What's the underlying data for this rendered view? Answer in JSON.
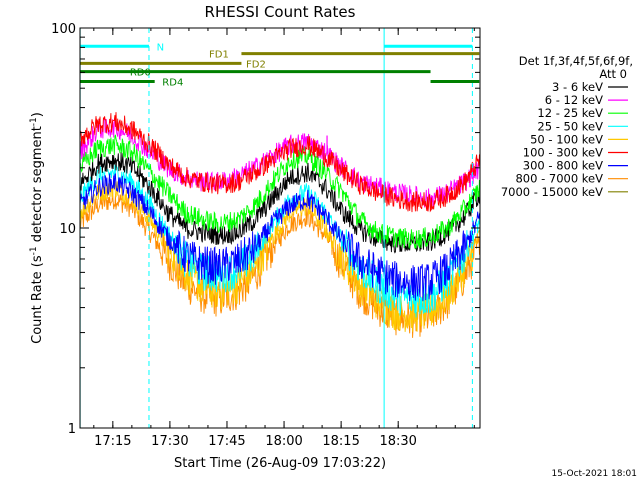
{
  "chart_data": {
    "type": "line",
    "title": "RHESSI Count Rates",
    "xlabel": "Start Time (26-Aug-09 17:03:22)",
    "ylabel_main": "Count Rate (s",
    "ylabel_sup": "-1",
    "ylabel_tail": " detector segment",
    "ylabel_end": ")",
    "yscale": "log",
    "ylim": [
      1,
      100
    ],
    "xlim_min": [
      3.37,
      108.5
    ],
    "x_ticks": [
      {
        "min": 12,
        "label": "17:15"
      },
      {
        "min": 27,
        "label": "17:30"
      },
      {
        "min": 42,
        "label": "17:45"
      },
      {
        "min": 57,
        "label": "18:00"
      },
      {
        "min": 72,
        "label": "18:15"
      },
      {
        "min": 87,
        "label": "18:30"
      }
    ],
    "y_ticks": [
      {
        "v": 1,
        "label": "1"
      },
      {
        "v": 10,
        "label": "10"
      },
      {
        "v": 100,
        "label": "100"
      }
    ],
    "legend_header": [
      "Det 1f,3f,4f,5f,6f,9f,",
      "Att 0"
    ],
    "series": [
      {
        "name": "3 - 6 keV",
        "color": "#000000",
        "values": [
          16.5,
          21,
          22,
          20,
          16,
          12,
          10,
          9.5,
          9.2,
          9.5,
          11,
          14,
          18,
          19,
          16,
          12,
          9.8,
          8.8,
          8.4,
          8.3,
          8.5,
          9.5,
          11.5,
          15
        ]
      },
      {
        "name": "6 - 12 keV",
        "color": "#ff00ff",
        "values": [
          24,
          31,
          32,
          29,
          24,
          20,
          18,
          17,
          17,
          18,
          20,
          23,
          26,
          27,
          24,
          20,
          17,
          16,
          15,
          14.5,
          14,
          15,
          17,
          20
        ]
      },
      {
        "name": "12 - 25 keV",
        "color": "#00ff00",
        "values": [
          20,
          25,
          26,
          24,
          19,
          15,
          12,
          11,
          10.5,
          11,
          13,
          17,
          22,
          23,
          19,
          15,
          11,
          9.5,
          9,
          8.8,
          9,
          10,
          12.5,
          16
        ]
      },
      {
        "name": "25 - 50 keV",
        "color": "#00ffff",
        "values": [
          14,
          18,
          19,
          17,
          13,
          9.5,
          7,
          6,
          5.8,
          6.2,
          7.5,
          10.5,
          14,
          15,
          12,
          8.5,
          6.3,
          5.2,
          4.6,
          4.4,
          4.5,
          5.5,
          7.5,
          11
        ]
      },
      {
        "name": "50 - 100 keV",
        "color": "#ffc800",
        "values": [
          12,
          15,
          16,
          14,
          11,
          8,
          6,
          5,
          4.8,
          5.2,
          6.3,
          9,
          12,
          13,
          10,
          7,
          5.2,
          4.3,
          3.8,
          3.7,
          3.8,
          4.6,
          6.3,
          9.3
        ]
      },
      {
        "name": "100 - 300 keV",
        "color": "#ff0000",
        "values": [
          28,
          33,
          34,
          31,
          26,
          21,
          18,
          17,
          16.5,
          17,
          19,
          22,
          25,
          26,
          23,
          19,
          16.5,
          15,
          14,
          13.5,
          13.5,
          14.5,
          17,
          22
        ]
      },
      {
        "name": "300 - 800 keV",
        "color": "#0000ff",
        "values": [
          13,
          16,
          17,
          15,
          12,
          9,
          7.3,
          6.6,
          6.4,
          6.8,
          8,
          10.5,
          13,
          14,
          11.5,
          8.6,
          6.8,
          6,
          5.5,
          5.3,
          5.4,
          6.2,
          8,
          11.5
        ]
      },
      {
        "name": "800 - 7000 keV",
        "color": "#ff8c00",
        "values": [
          10.5,
          13,
          14,
          12.5,
          9.5,
          7,
          5.3,
          4.6,
          4.4,
          4.8,
          5.8,
          8,
          10.5,
          11.5,
          9.2,
          6.5,
          4.8,
          4,
          3.6,
          3.5,
          3.6,
          4.3,
          5.8,
          8.5
        ]
      },
      {
        "name": "7000 - 15000 keV",
        "color": "#808000",
        "values": []
      }
    ],
    "sample_x_min": [
      3.37,
      8,
      12.6,
      17.2,
      21.8,
      26.4,
      31,
      35.6,
      40.2,
      44.8,
      49.4,
      54,
      58.6,
      63.2,
      67.8,
      72.4,
      77,
      81.6,
      86.2,
      90.8,
      95.4,
      100,
      104.6,
      108.5
    ],
    "spike": {
      "series": "6 - 12 keV",
      "x_min": 68.3,
      "value": 29
    },
    "attenuator_bars": [
      {
        "label": "N",
        "color": "#00ffff",
        "segments": [
          [
            3.4,
            21.5
          ],
          [
            83.3,
            106.5
          ]
        ],
        "v": 81,
        "label_at": 23.5,
        "label_anchor": "start"
      },
      {
        "label": "FD1",
        "color": "#808000",
        "segments": [
          [
            45.8,
            108.3
          ]
        ],
        "v": 74.5,
        "label_at": 42.5,
        "label_anchor": "end"
      },
      {
        "label": "FD2",
        "color": "#808000",
        "segments": [
          [
            3.4,
            45.8
          ]
        ],
        "v": 66.5,
        "label_at": 47,
        "label_anchor": "start"
      },
      {
        "label": "RD0",
        "color": "#008000",
        "segments": [
          [
            3.4,
            95.5
          ]
        ],
        "v": 60.5,
        "label_at": 22,
        "label_anchor": "end"
      },
      {
        "label": "RD4",
        "color": "#008000",
        "segments": [
          [
            3.4,
            23
          ],
          [
            95.5,
            108.3
          ]
        ],
        "v": 54,
        "label_at": 25,
        "label_anchor": "start"
      }
    ],
    "vlines": [
      {
        "x_min": 3.4,
        "style": "solid",
        "color": "#00ffff"
      },
      {
        "x_min": 21.5,
        "style": "dashed",
        "color": "#00ffff"
      },
      {
        "x_min": 83.3,
        "style": "solid",
        "color": "#00ffff"
      },
      {
        "x_min": 106.5,
        "style": "dashed",
        "color": "#00ffff"
      }
    ],
    "timestamp": "15-Oct-2021 18:01"
  }
}
